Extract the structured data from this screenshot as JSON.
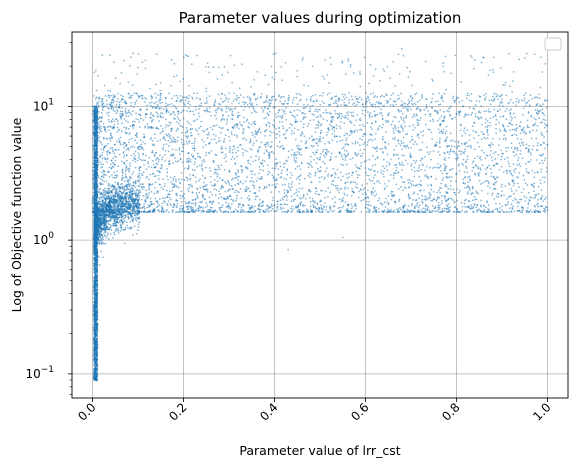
{
  "chart_data": {
    "type": "scatter",
    "title": "Parameter values during optimization",
    "xlabel": "Parameter value of lrr_cst",
    "ylabel": "Log of Objective function value",
    "xlim": [
      -0.045,
      1.045
    ],
    "ylim": [
      0.066,
      36
    ],
    "yscale": "log",
    "xticks": [
      0.0,
      0.2,
      0.4,
      0.6,
      0.8,
      1.0
    ],
    "xtick_labels": [
      "0.0",
      "0.2",
      "0.4",
      "0.6",
      "0.8",
      "1.0"
    ],
    "xtick_rotation_deg": 45,
    "yticks": [
      0.1,
      1,
      10
    ],
    "yticks_minor": [
      0.07,
      0.08,
      0.09,
      0.2,
      0.3,
      0.4,
      0.5,
      0.6,
      0.7,
      0.8,
      0.9,
      2,
      3,
      4,
      5,
      6,
      7,
      8,
      9,
      20,
      30
    ],
    "grid": true,
    "legend": "upper right, empty",
    "marker_color": "#1f77b4",
    "marker_alpha": 0.55,
    "point_count_approx": 9000,
    "series": [
      {
        "values": [
          [
            0.005,
            0.09
          ],
          [
            0.006,
            0.1
          ],
          [
            0.007,
            0.12
          ],
          [
            0.008,
            0.15
          ],
          [
            0.009,
            0.2
          ],
          [
            0.01,
            0.3
          ],
          [
            0.006,
            0.5
          ],
          [
            0.007,
            0.8
          ],
          [
            0.009,
            1.2
          ],
          [
            0.008,
            2.0
          ],
          [
            0.007,
            3.5
          ],
          [
            0.006,
            6.0
          ],
          [
            0.005,
            9.0
          ],
          [
            0.004,
            18.0
          ],
          [
            0.02,
            1.1
          ],
          [
            0.03,
            1.4
          ],
          [
            0.05,
            1.6
          ],
          [
            0.08,
            1.7
          ],
          [
            0.12,
            1.75
          ],
          [
            0.2,
            1.75
          ],
          [
            0.3,
            1.8
          ],
          [
            0.45,
            1.75
          ],
          [
            0.6,
            1.75
          ],
          [
            0.8,
            1.7
          ],
          [
            1.0,
            1.75
          ],
          [
            0.1,
            3.0
          ],
          [
            0.25,
            4.5
          ],
          [
            0.4,
            7.0
          ],
          [
            0.55,
            3.0
          ],
          [
            0.7,
            9.5
          ],
          [
            0.85,
            5.0
          ],
          [
            0.97,
            2.5
          ],
          [
            0.05,
            12.0
          ],
          [
            0.15,
            15.0
          ],
          [
            0.23,
            24.0
          ],
          [
            0.68,
            27.0
          ],
          [
            0.95,
            23.0
          ],
          [
            0.43,
            0.85
          ],
          [
            0.55,
            1.05
          ]
        ]
      }
    ]
  }
}
